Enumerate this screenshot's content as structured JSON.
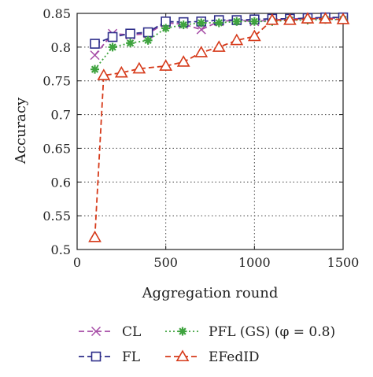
{
  "chart_data": {
    "type": "line",
    "title": "",
    "xlabel": "Aggregation round",
    "ylabel": "Accuracy",
    "xlim": [
      0,
      1500
    ],
    "ylim": [
      0.5,
      0.85
    ],
    "xticks": [
      0,
      500,
      1000,
      1500
    ],
    "yticks": [
      0.5,
      0.55,
      0.6,
      0.65,
      0.7,
      0.75,
      0.8,
      0.85
    ],
    "xtick_labels": [
      "0",
      "500",
      "1000",
      "1500"
    ],
    "ytick_labels": [
      "0.5",
      "0.55",
      "0.6",
      "0.65",
      "0.7",
      "0.75",
      "0.8",
      "0.85"
    ],
    "grid": "dotted",
    "legend_position": "bottom",
    "series": [
      {
        "name": "CL",
        "color": "#a64ca6",
        "dash": "dashed",
        "marker": "x-mark",
        "x": [
          100,
          200,
          300,
          400,
          500,
          600,
          700,
          800,
          900,
          1000,
          1100,
          1200,
          1300,
          1400,
          1500
        ],
        "y": [
          0.788,
          0.82,
          0.818,
          0.82,
          0.836,
          0.834,
          0.826,
          0.838,
          0.84,
          0.838,
          0.84,
          0.842,
          0.842,
          0.843,
          0.843
        ]
      },
      {
        "name": "FL",
        "color": "#2e2e8a",
        "dash": "dashed",
        "marker": "square",
        "x": [
          100,
          200,
          300,
          400,
          500,
          600,
          700,
          800,
          900,
          1000,
          1100,
          1200,
          1300,
          1400,
          1500
        ],
        "y": [
          0.805,
          0.815,
          0.82,
          0.822,
          0.838,
          0.837,
          0.838,
          0.84,
          0.84,
          0.841,
          0.842,
          0.842,
          0.843,
          0.844,
          0.844
        ]
      },
      {
        "name": "PFL (GS) (φ = 0.8)",
        "color": "#3fa33f",
        "dash": "dotted",
        "marker": "asterisk",
        "x": [
          100,
          200,
          300,
          400,
          500,
          600,
          700,
          800,
          900,
          1000,
          1100,
          1200,
          1300,
          1400,
          1500
        ],
        "y": [
          0.767,
          0.8,
          0.806,
          0.81,
          0.828,
          0.833,
          0.836,
          0.836,
          0.838,
          0.838,
          0.838,
          0.84,
          0.84,
          0.841,
          0.841
        ]
      },
      {
        "name": "EFedID",
        "color": "#d63a1a",
        "dash": "dashed",
        "marker": "triangle",
        "x": [
          100,
          150,
          250,
          350,
          500,
          600,
          700,
          800,
          900,
          1000,
          1100,
          1200,
          1300,
          1400,
          1500
        ],
        "y": [
          0.518,
          0.758,
          0.762,
          0.768,
          0.772,
          0.778,
          0.792,
          0.8,
          0.81,
          0.816,
          0.84,
          0.84,
          0.842,
          0.842,
          0.841
        ]
      }
    ]
  },
  "legend": {
    "items": [
      {
        "label": "CL"
      },
      {
        "label": "PFL (GS) (φ = 0.8)"
      },
      {
        "label": "FL"
      },
      {
        "label": "EFedID"
      }
    ]
  }
}
